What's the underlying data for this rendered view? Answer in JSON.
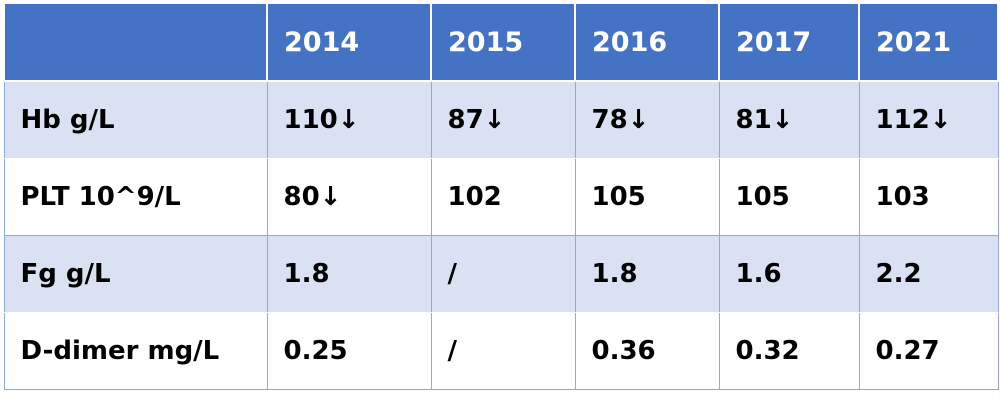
{
  "table": {
    "header": [
      "",
      "2014",
      "2015",
      "2016",
      "2017",
      "2021"
    ],
    "rows": [
      {
        "label": "Hb g/L",
        "values": [
          "110↓",
          "87↓",
          "78↓",
          "81↓",
          "112↓"
        ]
      },
      {
        "label": "PLT 10^9/L",
        "values": [
          "80↓",
          "102",
          "105",
          "105",
          "103"
        ]
      },
      {
        "label": "Fg g/L",
        "values": [
          "1.8",
          "/",
          "1.8",
          "1.6",
          "2.2"
        ]
      },
      {
        "label": "D-dimer mg/L",
        "values": [
          "0.25",
          "/",
          "0.36",
          "0.32",
          "0.27"
        ]
      }
    ]
  },
  "colors": {
    "header_bg": "#4472c4",
    "band_bg": "#d9e1f2",
    "plain_bg": "#ffffff"
  }
}
